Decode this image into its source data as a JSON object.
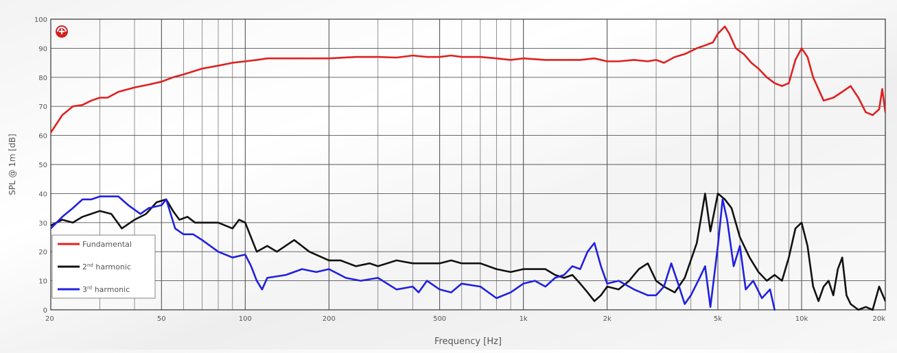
{
  "chart_data": {
    "type": "line",
    "xlabel": "Frequency [Hz]",
    "ylabel": "SPL @ 1m [dB]",
    "x_scale": "log",
    "xlim": [
      20,
      20000
    ],
    "ylim": [
      0,
      100
    ],
    "grid": true,
    "legend_position": "bottom-left",
    "x_tick_labels": [
      {
        "value": 20,
        "label": "20"
      },
      {
        "value": 50,
        "label": "50"
      },
      {
        "value": 100,
        "label": "100"
      },
      {
        "value": 200,
        "label": "200"
      },
      {
        "value": 500,
        "label": "500"
      },
      {
        "value": 1000,
        "label": "1k"
      },
      {
        "value": 2000,
        "label": "2k"
      },
      {
        "value": 5000,
        "label": "5k"
      },
      {
        "value": 10000,
        "label": "10k"
      },
      {
        "value": 20000,
        "label": "20k"
      }
    ],
    "y_ticks": [
      0,
      10,
      20,
      30,
      40,
      50,
      60,
      70,
      80,
      90,
      100
    ],
    "series": [
      {
        "name": "Fundamental",
        "color": "#e02020",
        "points": [
          [
            20,
            61
          ],
          [
            22,
            67
          ],
          [
            24,
            70
          ],
          [
            26,
            70.5
          ],
          [
            28,
            72
          ],
          [
            30,
            73
          ],
          [
            32,
            73
          ],
          [
            35,
            75
          ],
          [
            40,
            76.5
          ],
          [
            45,
            77.5
          ],
          [
            50,
            78.5
          ],
          [
            55,
            80
          ],
          [
            60,
            81
          ],
          [
            70,
            83
          ],
          [
            80,
            84
          ],
          [
            90,
            85
          ],
          [
            100,
            85.5
          ],
          [
            110,
            86
          ],
          [
            120,
            86.5
          ],
          [
            150,
            86.5
          ],
          [
            200,
            86.5
          ],
          [
            250,
            87
          ],
          [
            300,
            87
          ],
          [
            350,
            86.8
          ],
          [
            400,
            87.5
          ],
          [
            450,
            87
          ],
          [
            500,
            87
          ],
          [
            550,
            87.5
          ],
          [
            600,
            87
          ],
          [
            700,
            87
          ],
          [
            800,
            86.5
          ],
          [
            900,
            86
          ],
          [
            1000,
            86.5
          ],
          [
            1200,
            86
          ],
          [
            1400,
            86
          ],
          [
            1600,
            86
          ],
          [
            1800,
            86.5
          ],
          [
            2000,
            85.5
          ],
          [
            2200,
            85.5
          ],
          [
            2500,
            86
          ],
          [
            2800,
            85.5
          ],
          [
            3000,
            86
          ],
          [
            3200,
            85
          ],
          [
            3500,
            87
          ],
          [
            3800,
            88
          ],
          [
            4200,
            90
          ],
          [
            4500,
            91
          ],
          [
            4800,
            92
          ],
          [
            5000,
            95
          ],
          [
            5300,
            97.5
          ],
          [
            5500,
            95
          ],
          [
            5800,
            90
          ],
          [
            6200,
            88
          ],
          [
            6600,
            85
          ],
          [
            7000,
            83
          ],
          [
            7500,
            80
          ],
          [
            8000,
            78
          ],
          [
            8500,
            77
          ],
          [
            9000,
            78
          ],
          [
            9500,
            86
          ],
          [
            10000,
            90
          ],
          [
            10500,
            87
          ],
          [
            11000,
            80
          ],
          [
            12000,
            72
          ],
          [
            13000,
            73
          ],
          [
            14000,
            75
          ],
          [
            15000,
            77
          ],
          [
            16000,
            73
          ],
          [
            17000,
            68
          ],
          [
            18000,
            67
          ],
          [
            19000,
            69
          ],
          [
            19500,
            76
          ],
          [
            20000,
            68
          ]
        ]
      },
      {
        "name": "2nd harmonic",
        "color": "#111111",
        "points": [
          [
            20,
            29
          ],
          [
            22,
            31
          ],
          [
            24,
            30
          ],
          [
            26,
            32
          ],
          [
            30,
            34
          ],
          [
            33,
            33
          ],
          [
            36,
            28
          ],
          [
            40,
            31
          ],
          [
            44,
            33
          ],
          [
            48,
            37
          ],
          [
            52,
            38
          ],
          [
            55,
            34
          ],
          [
            58,
            31
          ],
          [
            62,
            32
          ],
          [
            66,
            30
          ],
          [
            70,
            30
          ],
          [
            80,
            30
          ],
          [
            90,
            28
          ],
          [
            95,
            31
          ],
          [
            100,
            30
          ],
          [
            110,
            20
          ],
          [
            120,
            22
          ],
          [
            130,
            20
          ],
          [
            150,
            24
          ],
          [
            170,
            20
          ],
          [
            200,
            17
          ],
          [
            220,
            17
          ],
          [
            250,
            15
          ],
          [
            280,
            16
          ],
          [
            300,
            15
          ],
          [
            350,
            17
          ],
          [
            400,
            16
          ],
          [
            450,
            16
          ],
          [
            500,
            16
          ],
          [
            550,
            17
          ],
          [
            600,
            16
          ],
          [
            700,
            16
          ],
          [
            800,
            14
          ],
          [
            900,
            13
          ],
          [
            1000,
            14
          ],
          [
            1100,
            14
          ],
          [
            1200,
            14
          ],
          [
            1300,
            12
          ],
          [
            1400,
            11
          ],
          [
            1500,
            12
          ],
          [
            1600,
            9
          ],
          [
            1700,
            6
          ],
          [
            1800,
            3
          ],
          [
            1900,
            5
          ],
          [
            2000,
            8
          ],
          [
            2200,
            7
          ],
          [
            2400,
            10
          ],
          [
            2600,
            14
          ],
          [
            2800,
            16
          ],
          [
            3000,
            10
          ],
          [
            3200,
            8
          ],
          [
            3500,
            6
          ],
          [
            3800,
            11
          ],
          [
            4200,
            23
          ],
          [
            4500,
            40
          ],
          [
            4700,
            27
          ],
          [
            5000,
            40
          ],
          [
            5300,
            38
          ],
          [
            5600,
            35
          ],
          [
            6000,
            25
          ],
          [
            6500,
            18
          ],
          [
            7000,
            13
          ],
          [
            7500,
            10
          ],
          [
            8000,
            12
          ],
          [
            8500,
            10
          ],
          [
            9000,
            18
          ],
          [
            9500,
            28
          ],
          [
            10000,
            30
          ],
          [
            10500,
            22
          ],
          [
            11000,
            8
          ],
          [
            11500,
            3
          ],
          [
            12000,
            8
          ],
          [
            12500,
            10
          ],
          [
            13000,
            5
          ],
          [
            13500,
            14
          ],
          [
            14000,
            18
          ],
          [
            14500,
            5
          ],
          [
            15000,
            2
          ],
          [
            16000,
            0
          ],
          [
            17000,
            1
          ],
          [
            18000,
            0
          ],
          [
            19000,
            8
          ],
          [
            20000,
            3
          ]
        ]
      },
      {
        "name": "3rd harmonic",
        "color": "#2020e0",
        "points": [
          [
            20,
            28
          ],
          [
            22,
            32
          ],
          [
            24,
            35
          ],
          [
            26,
            38
          ],
          [
            28,
            38
          ],
          [
            30,
            39
          ],
          [
            32,
            39
          ],
          [
            35,
            39
          ],
          [
            38,
            36
          ],
          [
            42,
            33
          ],
          [
            45,
            35
          ],
          [
            50,
            36
          ],
          [
            52,
            38
          ],
          [
            56,
            28
          ],
          [
            60,
            26
          ],
          [
            65,
            26
          ],
          [
            70,
            24
          ],
          [
            80,
            20
          ],
          [
            90,
            18
          ],
          [
            100,
            19
          ],
          [
            105,
            15
          ],
          [
            110,
            10
          ],
          [
            115,
            7
          ],
          [
            120,
            11
          ],
          [
            140,
            12
          ],
          [
            160,
            14
          ],
          [
            180,
            13
          ],
          [
            200,
            14
          ],
          [
            230,
            11
          ],
          [
            260,
            10
          ],
          [
            300,
            11
          ],
          [
            350,
            7
          ],
          [
            400,
            8
          ],
          [
            420,
            6
          ],
          [
            450,
            10
          ],
          [
            500,
            7
          ],
          [
            550,
            6
          ],
          [
            600,
            9
          ],
          [
            700,
            8
          ],
          [
            800,
            4
          ],
          [
            900,
            6
          ],
          [
            1000,
            9
          ],
          [
            1100,
            10
          ],
          [
            1200,
            8
          ],
          [
            1300,
            11
          ],
          [
            1400,
            12
          ],
          [
            1500,
            15
          ],
          [
            1600,
            14
          ],
          [
            1700,
            20
          ],
          [
            1800,
            23
          ],
          [
            1900,
            15
          ],
          [
            2000,
            9
          ],
          [
            2200,
            10
          ],
          [
            2500,
            7
          ],
          [
            2800,
            5
          ],
          [
            3000,
            5
          ],
          [
            3200,
            8
          ],
          [
            3400,
            16
          ],
          [
            3600,
            9
          ],
          [
            3800,
            2
          ],
          [
            4000,
            5
          ],
          [
            4300,
            11
          ],
          [
            4500,
            15
          ],
          [
            4700,
            1
          ],
          [
            5000,
            22
          ],
          [
            5200,
            38
          ],
          [
            5400,
            31
          ],
          [
            5700,
            15
          ],
          [
            6000,
            22
          ],
          [
            6300,
            7
          ],
          [
            6700,
            10
          ],
          [
            7200,
            4
          ],
          [
            7700,
            7
          ],
          [
            8000,
            0
          ]
        ]
      }
    ],
    "legend": [
      {
        "label": "Fundamental",
        "color": "#e02020"
      },
      {
        "label": "2nd harmonic",
        "label_base": "2",
        "label_sup": "nd",
        "label_rest": " harmonic",
        "color": "#111111"
      },
      {
        "label": "3rd harmonic",
        "label_base": "3",
        "label_sup": "rd",
        "label_rest": " harmonic",
        "color": "#2020e0"
      }
    ]
  }
}
